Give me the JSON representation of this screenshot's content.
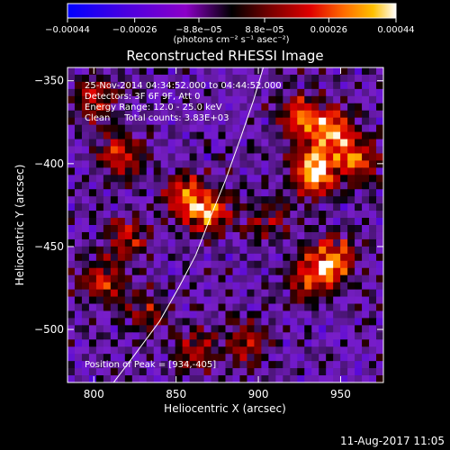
{
  "chart_data": {
    "type": "heatmap",
    "title": "Reconstructed RHESSI Image",
    "xlabel": "Heliocentric X (arcsec)",
    "ylabel": "Heliocentric Y (arcsec)",
    "xlim": [
      784,
      976
    ],
    "ylim": [
      -532,
      -342
    ],
    "x_ticks": [
      800,
      850,
      900,
      950
    ],
    "y_ticks": [
      -350,
      -400,
      -450,
      -500
    ],
    "x_tick_labels": [
      "800",
      "850",
      "900",
      "950"
    ],
    "y_tick_labels": [
      "−350",
      "−400",
      "−450",
      "−500"
    ],
    "colorbar": {
      "range": [
        -0.00044,
        0.00044
      ],
      "tick_values": [
        -0.00044,
        -0.00026,
        -8.8e-05,
        8.8e-05,
        0.00026,
        0.00044
      ],
      "tick_labels": [
        "−0.00044",
        "−0.00026",
        "−8.8e−05",
        "8.8e−05",
        "0.00026",
        "0.00044"
      ],
      "unit_label": "(photons cm⁻² s⁻¹ asec⁻²)",
      "colors": [
        "#0000ff",
        "#4b00e0",
        "#8c00c8",
        "#000000",
        "#7a0000",
        "#e00000",
        "#ff6a00",
        "#ffc000",
        "#ffffff"
      ]
    },
    "annotations": [
      "25-Nov-2014 04:34:52.000 to 04:44:52.000",
      "Detectors: 3F 6F 9F, Att 0",
      "Energy Range: 12.0 - 25.0 keV",
      "Clean     Total counts: 3.83E+03"
    ],
    "peak_label": "Position of Peak = [934,-405]",
    "peak": [
      934,
      -405
    ],
    "limb_curve": [
      [
        812,
        -532
      ],
      [
        825,
        -515
      ],
      [
        840,
        -495
      ],
      [
        852,
        -474
      ],
      [
        862,
        -455
      ],
      [
        871,
        -432
      ],
      [
        880,
        -410
      ],
      [
        889,
        -385
      ],
      [
        897,
        -362
      ],
      [
        903,
        -342
      ]
    ],
    "hotspots": [
      {
        "x": 934,
        "y": -405,
        "amp": 1.0
      },
      {
        "x": 945,
        "y": -380,
        "amp": 0.8
      },
      {
        "x": 925,
        "y": -372,
        "amp": 0.6
      },
      {
        "x": 960,
        "y": -398,
        "amp": 0.55
      },
      {
        "x": 945,
        "y": -458,
        "amp": 0.75
      },
      {
        "x": 930,
        "y": -470,
        "amp": 0.55
      },
      {
        "x": 870,
        "y": -430,
        "amp": 0.7
      },
      {
        "x": 855,
        "y": -418,
        "amp": 0.55
      },
      {
        "x": 815,
        "y": -395,
        "amp": 0.55
      },
      {
        "x": 805,
        "y": -470,
        "amp": 0.5
      },
      {
        "x": 820,
        "y": -445,
        "amp": 0.45
      },
      {
        "x": 800,
        "y": -360,
        "amp": 0.5
      },
      {
        "x": 862,
        "y": -512,
        "amp": 0.45
      },
      {
        "x": 893,
        "y": -508,
        "amp": 0.4
      },
      {
        "x": 905,
        "y": -435,
        "amp": 0.35
      },
      {
        "x": 832,
        "y": -488,
        "amp": 0.4
      }
    ]
  },
  "footer": {
    "timestamp": "11-Aug-2017 11:05"
  }
}
